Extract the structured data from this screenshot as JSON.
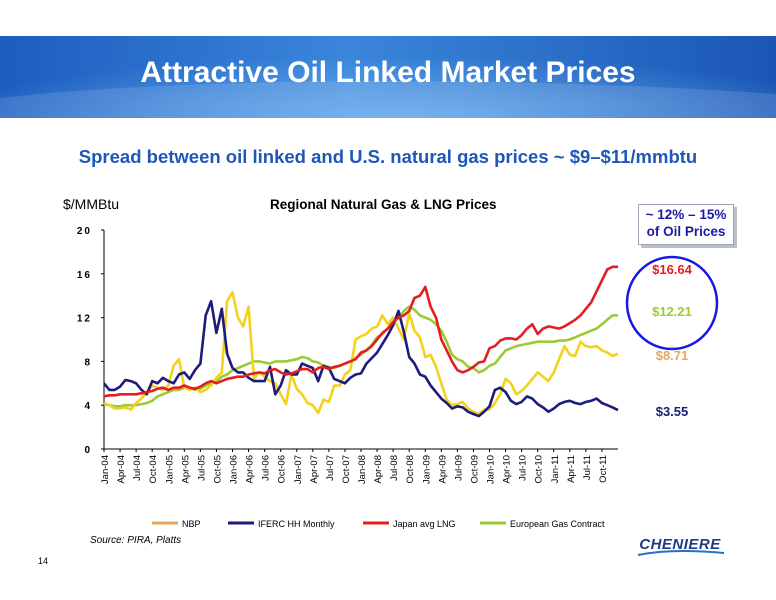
{
  "slide": {
    "title": "Attractive Oil Linked Market Prices",
    "subtitle": "Spread between oil linked and U.S. natural gas prices ~ $9–$11/mmbtu",
    "source": "Source: PIRA, Platts",
    "page_number": "14",
    "logo_text": "CHENIERE",
    "callout_lines": [
      "~ 12% – 15%",
      "of Oil Prices"
    ]
  },
  "colors": {
    "banner": "#2a6fcc",
    "subtitle": "#1f57b8",
    "NBP": "#f2d21b",
    "IFERC HH Monthly": "#1c1c7a",
    "Japan avg LNG": "#e41e1e",
    "European Gas Contract": "#9bcb34"
  },
  "chart_data": {
    "type": "line",
    "title": "Regional Natural Gas & LNG Prices",
    "ylabel": "$/MMBtu",
    "xlabel": "",
    "ylim": [
      0,
      20
    ],
    "yticks": [
      0,
      4,
      8,
      12,
      16,
      20
    ],
    "ytick_labels": [
      "0",
      "4",
      "8",
      "12",
      "16",
      "20"
    ],
    "grid": false,
    "legend_position": "bottom",
    "x_start": "Jan-04",
    "x_tick_labels": [
      "Jan-04",
      "Apr-04",
      "Jul-04",
      "Oct-04",
      "Jan-05",
      "Apr-05",
      "Jul-05",
      "Oct-05",
      "Jan-06",
      "Apr-06",
      "Jul-06",
      "Oct-06",
      "Jan-07",
      "Apr-07",
      "Jul-07",
      "Oct-07",
      "Jan-08",
      "Apr-08",
      "Jul-08",
      "Oct-08",
      "Jan-09",
      "Apr-09",
      "Jul-09",
      "Oct-09",
      "Jan-10",
      "Apr-10",
      "Jul-10",
      "Oct-10",
      "Jan-11",
      "Apr-11",
      "Jul-11",
      "Oct-11"
    ],
    "series": [
      {
        "name": "NBP",
        "values": [
          4.2,
          4.0,
          3.7,
          3.7,
          3.8,
          3.6,
          4.2,
          4.6,
          5.2,
          5.8,
          5.6,
          5.4,
          5.8,
          7.6,
          8.2,
          5.6,
          5.4,
          5.6,
          5.2,
          5.4,
          5.8,
          6.5,
          7.0,
          13.5,
          14.3,
          12.0,
          11.2,
          13.0,
          6.4,
          7.0,
          6.6,
          6.2,
          6.0,
          5.0,
          4.1,
          6.8,
          5.5,
          5.0,
          4.2,
          4.0,
          3.3,
          4.5,
          4.3,
          5.8,
          5.8,
          6.8,
          7.2,
          10.0,
          10.3,
          10.5,
          11.0,
          11.2,
          12.2,
          11.4,
          12.0,
          11.0,
          10.0,
          12.4,
          10.8,
          10.2,
          8.4,
          8.6,
          7.5,
          6.0,
          4.5,
          4.0,
          4.1,
          4.3,
          3.7,
          3.4,
          3.2,
          3.6,
          3.6,
          4.2,
          5.0,
          6.4,
          6.0,
          5.0,
          5.3,
          5.8,
          6.4,
          7.0,
          6.6,
          6.2,
          7.0,
          8.2,
          9.4,
          8.6,
          8.5,
          9.8,
          9.4,
          9.3,
          9.4,
          9.0,
          8.8,
          8.5,
          8.7
        ]
      },
      {
        "name": "IFERC HH Monthly",
        "values": [
          6.0,
          5.4,
          5.4,
          5.7,
          6.3,
          6.2,
          6.0,
          5.4,
          5.0,
          6.2,
          6.0,
          6.5,
          6.2,
          6.0,
          6.8,
          7.0,
          6.4,
          7.2,
          7.8,
          12.2,
          13.5,
          10.6,
          12.8,
          8.7,
          7.4,
          7.0,
          7.0,
          6.5,
          6.2,
          6.2,
          6.2,
          7.5,
          5.0,
          5.8,
          7.2,
          6.8,
          6.8,
          7.8,
          7.6,
          7.4,
          6.2,
          7.6,
          7.4,
          6.4,
          6.2,
          6.0,
          6.5,
          6.8,
          6.9,
          7.8,
          8.3,
          8.8,
          9.6,
          10.4,
          11.3,
          12.6,
          10.7,
          8.4,
          7.8,
          6.8,
          6.6,
          5.8,
          5.2,
          4.6,
          4.2,
          3.7,
          3.9,
          3.8,
          3.4,
          3.2,
          3.0,
          3.4,
          3.9,
          5.4,
          5.6,
          5.2,
          4.4,
          4.1,
          4.3,
          4.8,
          4.6,
          4.1,
          3.8,
          3.4,
          3.7,
          4.1,
          4.3,
          4.4,
          4.2,
          4.1,
          4.3,
          4.4,
          4.6,
          4.2,
          4.0,
          3.8,
          3.55
        ]
      },
      {
        "name": "Japan avg LNG",
        "values": [
          4.8,
          4.9,
          4.9,
          5.0,
          5.0,
          5.0,
          5.0,
          5.1,
          5.2,
          5.3,
          5.5,
          5.6,
          5.4,
          5.6,
          5.6,
          5.8,
          5.6,
          5.5,
          5.7,
          6.0,
          6.2,
          6.0,
          6.2,
          6.4,
          6.5,
          6.6,
          6.6,
          6.8,
          6.9,
          7.0,
          6.9,
          7.2,
          7.3,
          7.0,
          6.8,
          6.9,
          7.1,
          7.3,
          7.3,
          7.0,
          7.4,
          7.5,
          7.3,
          7.5,
          7.6,
          7.8,
          8.0,
          8.2,
          8.8,
          9.0,
          9.4,
          10.0,
          10.6,
          11.0,
          11.6,
          12.0,
          12.2,
          12.6,
          13.8,
          14.0,
          14.8,
          13.0,
          12.0,
          10.0,
          9.0,
          8.0,
          7.2,
          7.0,
          7.2,
          7.5,
          7.9,
          8.0,
          9.2,
          9.4,
          9.9,
          10.1,
          10.1,
          10.0,
          10.4,
          11.0,
          11.4,
          10.5,
          11.0,
          11.2,
          11.1,
          11.0,
          11.2,
          11.5,
          11.8,
          12.2,
          12.8,
          13.4,
          14.4,
          15.4,
          16.4,
          16.64,
          16.64
        ]
      },
      {
        "name": "European Gas Contract",
        "values": [
          4.1,
          4.0,
          3.9,
          3.9,
          4.0,
          4.0,
          4.0,
          4.1,
          4.2,
          4.4,
          4.8,
          5.0,
          5.2,
          5.4,
          5.4,
          5.6,
          5.6,
          5.4,
          5.5,
          5.8,
          6.0,
          6.2,
          6.6,
          6.8,
          7.2,
          7.4,
          7.6,
          7.8,
          8.0,
          8.0,
          7.9,
          7.8,
          8.0,
          8.0,
          8.0,
          8.1,
          8.2,
          8.4,
          8.3,
          8.0,
          7.9,
          7.6,
          7.5,
          7.4,
          7.6,
          7.8,
          8.0,
          8.3,
          8.6,
          9.0,
          9.5,
          10.2,
          10.5,
          11.0,
          11.6,
          12.0,
          12.6,
          13.0,
          12.7,
          12.2,
          12.0,
          11.8,
          11.4,
          10.8,
          9.8,
          8.6,
          8.2,
          8.0,
          7.5,
          7.4,
          7.0,
          7.2,
          7.6,
          7.8,
          8.4,
          9.0,
          9.2,
          9.4,
          9.5,
          9.6,
          9.7,
          9.8,
          9.8,
          9.8,
          9.8,
          9.9,
          9.9,
          10.0,
          10.2,
          10.4,
          10.6,
          10.8,
          11.0,
          11.4,
          11.8,
          12.2,
          12.21
        ]
      }
    ],
    "end_labels": [
      {
        "series": "Japan avg LNG",
        "text": "$16.64",
        "color": "#e41e1e"
      },
      {
        "series": "European Gas Contract",
        "text": "$12.21",
        "color": "#9bcb34"
      },
      {
        "series": "NBP",
        "text": "$8.71",
        "color": "#e8a85a"
      },
      {
        "series": "IFERC HH Monthly",
        "text": "$3.55",
        "color": "#1c1c7a"
      }
    ],
    "legend": [
      {
        "name": "NBP",
        "color": "#e8a85a"
      },
      {
        "name": "IFERC HH Monthly",
        "color": "#1c1c7a"
      },
      {
        "name": "Japan avg LNG",
        "color": "#e41e1e"
      },
      {
        "name": "European Gas Contract",
        "color": "#9bcb34"
      }
    ]
  }
}
